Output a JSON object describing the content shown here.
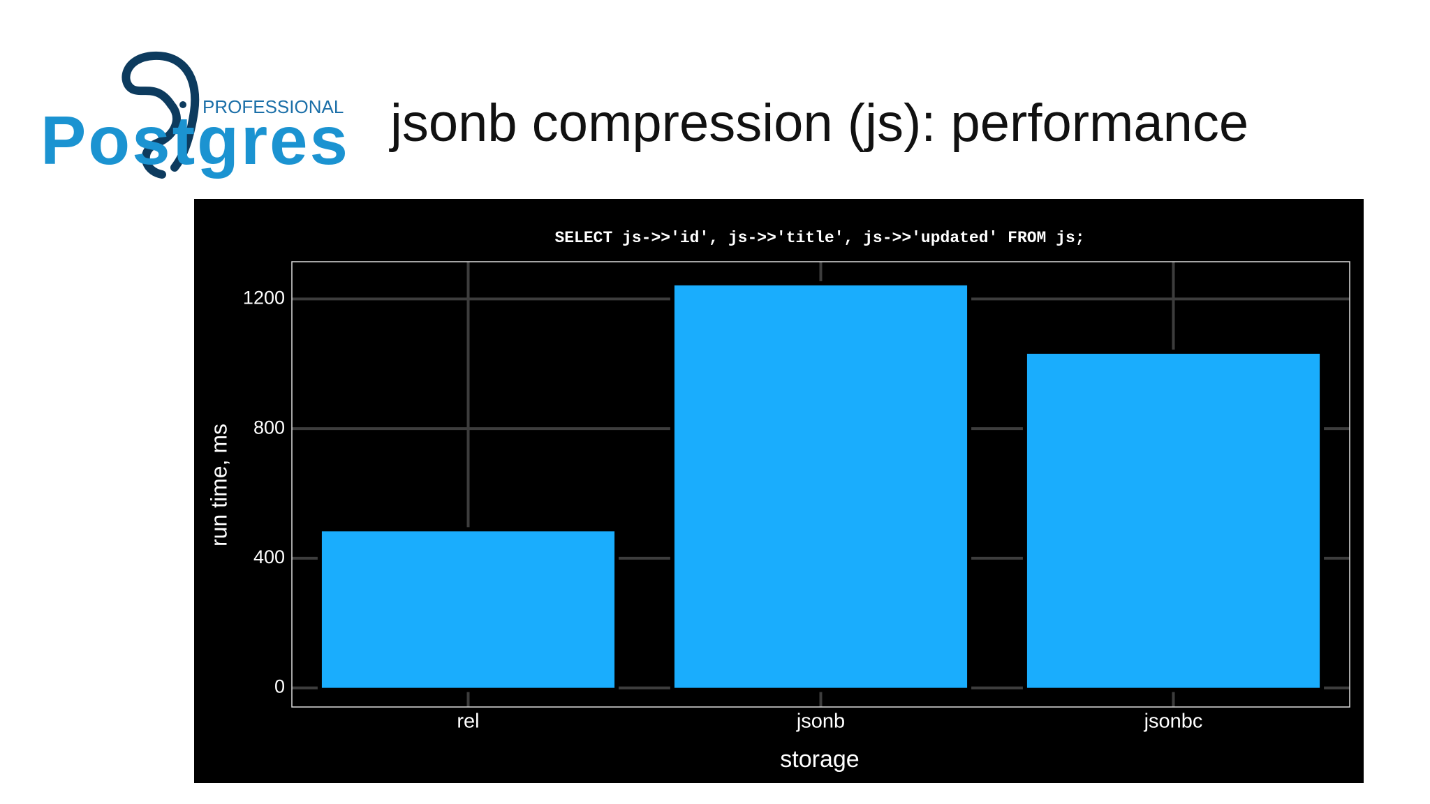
{
  "logo": {
    "brand": "Postgres",
    "sub": "PROFESSIONAL"
  },
  "header": {
    "title": "jsonb compression (js): performance"
  },
  "chart_data": {
    "type": "bar",
    "title": "SELECT js->>'id', js->>'title', js->>'updated' FROM js;",
    "x_label": "storage",
    "y_label": "run time, ms",
    "categories": [
      "rel",
      "jsonb",
      "jsonbc"
    ],
    "values": [
      483,
      1242,
      1031
    ],
    "color": "#1aadfd",
    "ylim": [
      -59,
      1315
    ],
    "yticks": [
      0,
      400,
      800,
      1200
    ],
    "grid": true
  }
}
